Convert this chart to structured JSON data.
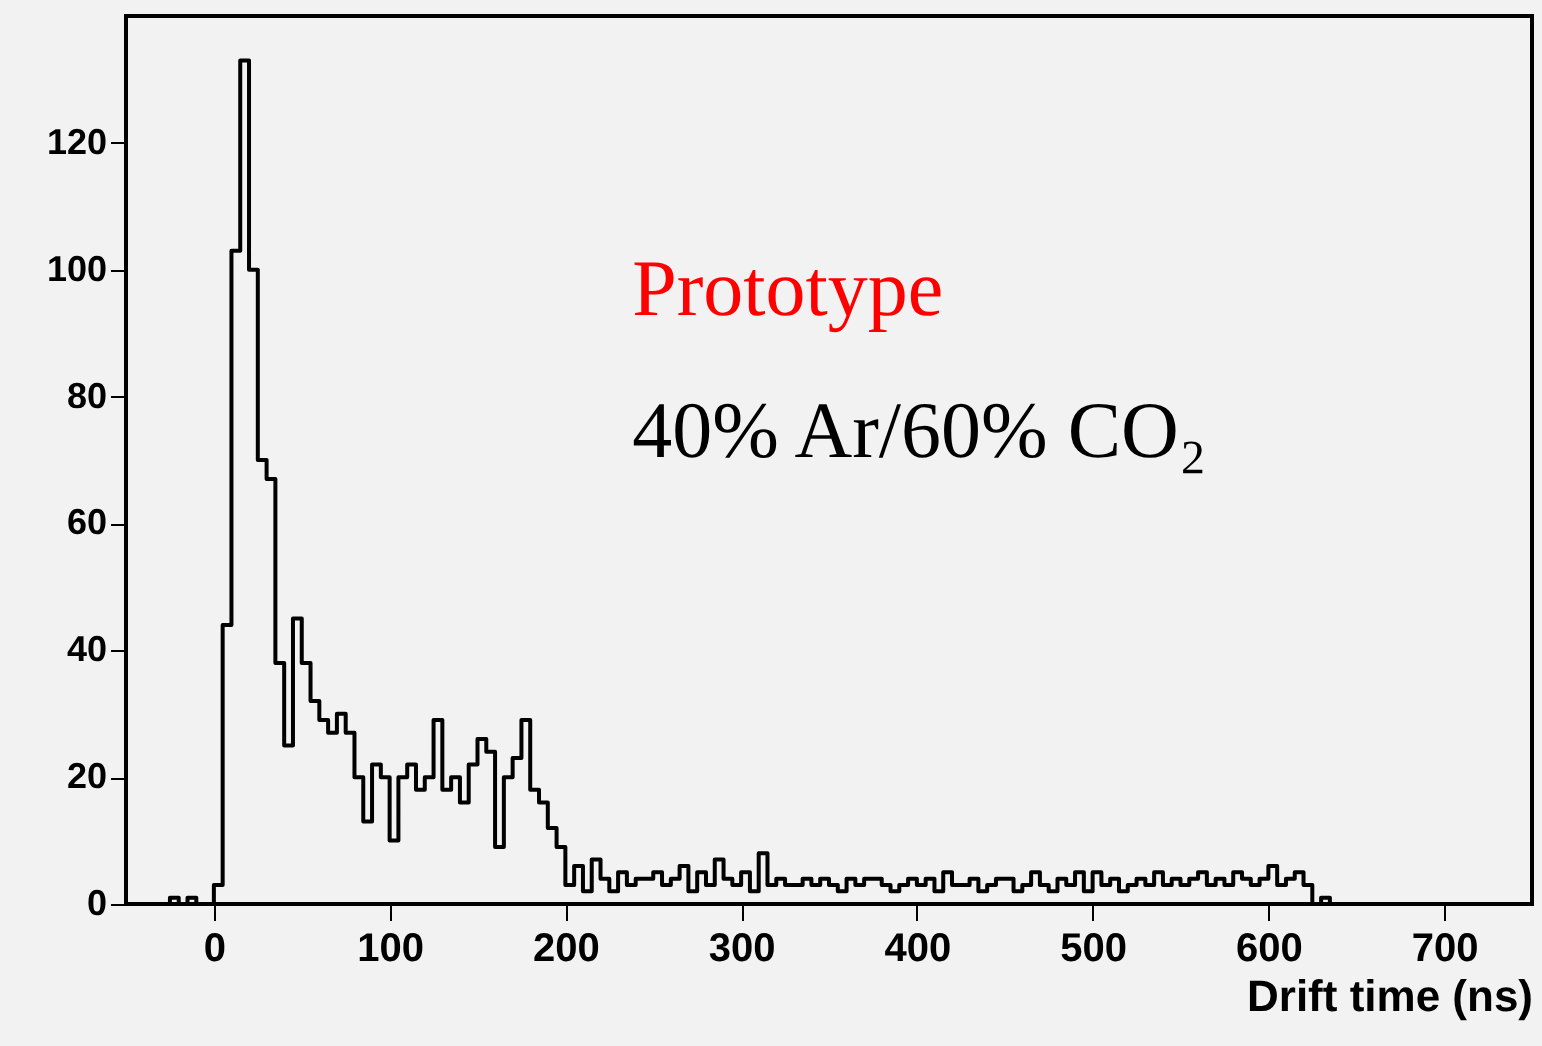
{
  "chart_data": {
    "type": "histogram",
    "xlabel": "Drift time (ns)",
    "annotations": [
      "Prototype",
      "40% Ar/60% CO₂"
    ],
    "bins": [
      -50,
      -45,
      -40,
      -35,
      -30,
      -25,
      -20,
      -15,
      -10,
      -5,
      0,
      5,
      10,
      15,
      20,
      25,
      30,
      35,
      40,
      45,
      50,
      55,
      60,
      65,
      70,
      75,
      80,
      85,
      90,
      95,
      100,
      105,
      110,
      115,
      120,
      125,
      130,
      135,
      140,
      145,
      150,
      155,
      160,
      165,
      170,
      175,
      180,
      185,
      190,
      195,
      200,
      205,
      210,
      215,
      220,
      225,
      230,
      235,
      240,
      245,
      250,
      255,
      260,
      265,
      270,
      275,
      280,
      285,
      290,
      295,
      300,
      305,
      310,
      315,
      320,
      325,
      330,
      335,
      340,
      345,
      350,
      355,
      360,
      365,
      370,
      375,
      380,
      385,
      390,
      395,
      400,
      405,
      410,
      415,
      420,
      425,
      430,
      435,
      440,
      445,
      450,
      455,
      460,
      465,
      470,
      475,
      480,
      485,
      490,
      495,
      500,
      505,
      510,
      515,
      520,
      525,
      530,
      535,
      540,
      545,
      550,
      555,
      560,
      565,
      570,
      575,
      580,
      585,
      590,
      595,
      600,
      605,
      610,
      615,
      620,
      625,
      630,
      635,
      640,
      645,
      650,
      655,
      660,
      665,
      670,
      675,
      680,
      685,
      690,
      695,
      700,
      705,
      710,
      715,
      720,
      725,
      730,
      735,
      740,
      745,
      750
    ],
    "values": [
      0,
      0,
      0,
      0,
      0,
      1,
      0,
      1,
      0,
      0,
      3,
      44,
      103,
      133,
      100,
      70,
      67,
      38,
      25,
      45,
      38,
      32,
      29,
      27,
      30,
      27,
      20,
      13,
      22,
      20,
      10,
      20,
      22,
      18,
      20,
      29,
      18,
      20,
      16,
      22,
      26,
      24,
      9,
      20,
      23,
      29,
      18,
      16,
      12,
      9,
      3,
      6,
      2,
      7,
      4,
      2,
      5,
      3,
      4,
      4,
      5,
      3,
      4,
      6,
      2,
      5,
      3,
      7,
      4,
      3,
      5,
      2,
      8,
      3,
      4,
      3,
      3,
      4,
      3,
      4,
      3,
      2,
      4,
      3,
      4,
      4,
      3,
      2,
      3,
      4,
      3,
      4,
      2,
      5,
      3,
      3,
      4,
      2,
      3,
      4,
      4,
      2,
      3,
      5,
      3,
      2,
      4,
      3,
      5,
      2,
      5,
      3,
      4,
      2,
      3,
      4,
      3,
      5,
      3,
      4,
      3,
      4,
      5,
      3,
      4,
      3,
      5,
      4,
      3,
      4,
      6,
      3,
      4,
      5,
      3,
      0,
      1,
      0,
      0,
      0,
      0,
      0,
      0,
      0,
      0,
      0,
      0,
      0,
      0,
      0,
      0,
      0,
      0,
      0,
      0,
      0,
      0,
      0,
      0,
      0
    ],
    "color": "#000000",
    "xlim": [
      -50,
      750
    ],
    "ylim": [
      0,
      140
    ],
    "xticks": [
      0,
      100,
      200,
      300,
      400,
      500,
      600,
      700
    ],
    "yticks": [
      0,
      20,
      40,
      60,
      80,
      100,
      120
    ],
    "grid": false
  }
}
